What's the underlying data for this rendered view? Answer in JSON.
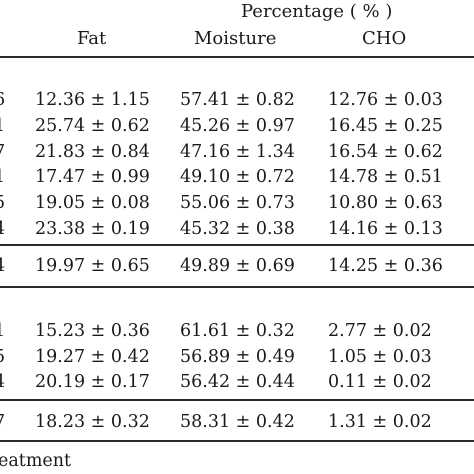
{
  "header": {
    "group_label": "Percentage ( % )",
    "columns": [
      "Fat",
      "Moisture",
      "CHO"
    ]
  },
  "rows": [
    {
      "prefix": "6",
      "fat": "12.36 ± 1.15",
      "moisture": "57.41 ± 0.82",
      "cho": "12.76 ± 0.03"
    },
    {
      "prefix": "1",
      "fat": "25.74 ± 0.62",
      "moisture": "45.26 ± 0.97",
      "cho": "16.45 ± 0.25"
    },
    {
      "prefix": "7",
      "fat": "21.83 ± 0.84",
      "moisture": "47.16 ± 1.34",
      "cho": "16.54 ± 0.62"
    },
    {
      "prefix": "1",
      "fat": "17.47 ± 0.99",
      "moisture": "49.10 ± 0.72",
      "cho": "14.78 ± 0.51"
    },
    {
      "prefix": "5",
      "fat": "19.05 ± 0.08",
      "moisture": "55.06 ± 0.73",
      "cho": "10.80 ± 0.63"
    },
    {
      "prefix": "4",
      "fat": "23.38 ± 0.19",
      "moisture": "45.32 ± 0.38",
      "cho": "14.16 ± 0.13"
    },
    {
      "prefix": "4",
      "fat": "19.97 ± 0.65",
      "moisture": "49.89 ± 0.69",
      "cho": "14.25 ± 0.36"
    },
    {
      "prefix": "1",
      "fat": "15.23 ± 0.36",
      "moisture": "61.61 ± 0.32",
      "cho": "2.77 ± 0.02"
    },
    {
      "prefix": "5",
      "fat": "19.27 ± 0.42",
      "moisture": "56.89 ± 0.49",
      "cho": "1.05 ± 0.03"
    },
    {
      "prefix": "4",
      "fat": "20.19 ± 0.17",
      "moisture": "56.42 ± 0.44",
      "cho": "0.11 ± 0.02"
    },
    {
      "prefix": "7",
      "fat": "18.23 ± 0.32",
      "moisture": "58.31 ± 0.42",
      "cho": "1.31 ± 0.02"
    }
  ],
  "footnote": "eatment"
}
